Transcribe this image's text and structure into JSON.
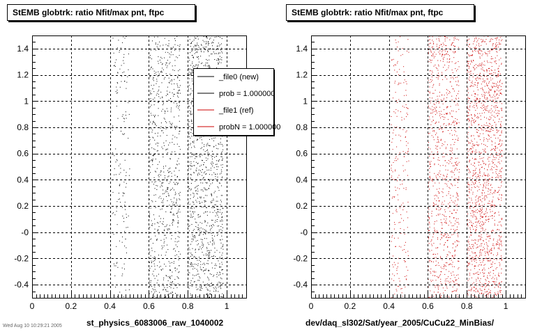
{
  "footer_text": "Wed Aug 10 10:29:21 2005",
  "colors": {
    "new": "#000000",
    "ref": "#cc0000",
    "background": "#ffffff"
  },
  "chart_data": [
    {
      "type": "scatter",
      "title": "StEMB globtrk: ratio Nfit/max pnt, ftpc",
      "xlabel": "st_physics_6083006_raw_1040002",
      "ylabel": "",
      "xlim": [
        0,
        1.1
      ],
      "ylim": [
        -0.5,
        1.5
      ],
      "x_ticks": [
        "0",
        "0.2",
        "0.4",
        "0.6",
        "0.8",
        "1"
      ],
      "y_ticks": [
        "-0.4",
        "-0.2",
        "-0",
        "0.2",
        "0.4",
        "0.6",
        "0.8",
        "1",
        "1.2",
        "1.4"
      ],
      "grid": true,
      "series": [
        {
          "name": "_file0 (new)",
          "color": "#000000",
          "point_bands": [
            {
              "xmin": 0.41,
              "xmax": 0.5,
              "count": 150
            },
            {
              "xmin": 0.6,
              "xmax": 0.76,
              "count": 700
            },
            {
              "xmin": 0.8,
              "xmax": 0.98,
              "count": 1200
            }
          ]
        }
      ],
      "legend": {
        "placement": "top-right",
        "entries": [
          {
            "label": "_file0 (new)",
            "color": "#000000"
          },
          {
            "label": "prob = 1.000000",
            "color": "#000000"
          },
          {
            "label": "_file1 (ref)",
            "color": "#cc0000"
          },
          {
            "label": "probN = 1.000000",
            "color": "#cc0000"
          }
        ]
      }
    },
    {
      "type": "scatter",
      "title": "StEMB globtrk: ratio Nfit/max pnt, ftpc",
      "xlabel": "dev/daq_sl302/Sat/year_2005/CuCu22_MinBias/",
      "ylabel": "",
      "xlim": [
        0,
        1.1
      ],
      "ylim": [
        -0.5,
        1.5
      ],
      "x_ticks": [
        "0",
        "0.2",
        "0.4",
        "0.6",
        "0.8",
        "1"
      ],
      "y_ticks": [
        "-0.4",
        "-0.2",
        "-0",
        "0.2",
        "0.4",
        "0.6",
        "0.8",
        "1",
        "1.2",
        "1.4"
      ],
      "grid": true,
      "series": [
        {
          "name": "_file1 (ref)",
          "color": "#cc0000",
          "point_bands": [
            {
              "xmin": 0.41,
              "xmax": 0.5,
              "count": 220
            },
            {
              "xmin": 0.6,
              "xmax": 0.76,
              "count": 900
            },
            {
              "xmin": 0.8,
              "xmax": 0.98,
              "count": 1500
            }
          ]
        }
      ]
    }
  ]
}
